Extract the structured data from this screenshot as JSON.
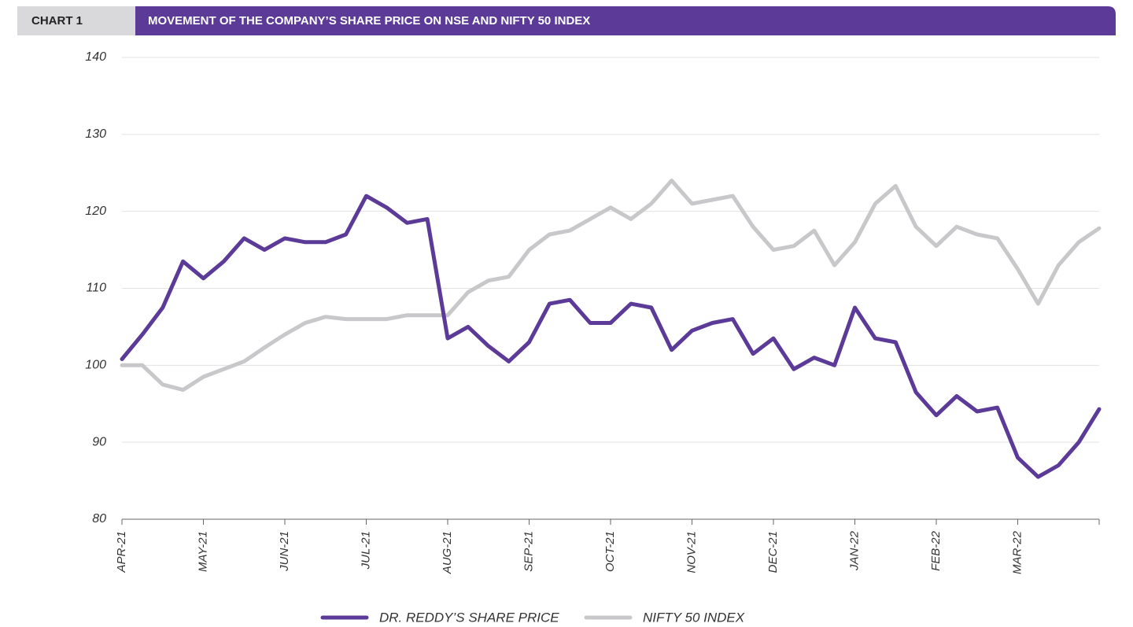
{
  "chart_data": {
    "type": "line",
    "chart_label": "CHART 1",
    "title": "MOVEMENT OF THE COMPANY’S SHARE PRICE ON NSE AND NIFTY 50 INDEX",
    "categories": [
      "APR-21",
      null,
      null,
      null,
      "MAY-21",
      null,
      null,
      null,
      "JUN-21",
      null,
      null,
      null,
      "JUL-21",
      null,
      null,
      null,
      "AUG-21",
      null,
      null,
      null,
      "SEP-21",
      null,
      null,
      null,
      "OCT-21",
      null,
      null,
      null,
      "NOV-21",
      null,
      null,
      null,
      "DEC-21",
      null,
      null,
      null,
      "JAN-22",
      null,
      null,
      null,
      "FEB-22",
      null,
      null,
      null,
      "MAR-22",
      null,
      null,
      null,
      null
    ],
    "series": [
      {
        "name": "DR. REDDY’S SHARE PRICE",
        "color": "#5b3b97",
        "values": [
          100.8,
          104,
          107.5,
          113.5,
          111.3,
          113.5,
          116.5,
          115,
          116.5,
          116,
          116,
          117,
          122,
          120.5,
          118.5,
          119,
          103.5,
          105,
          102.5,
          100.5,
          103,
          108,
          108.5,
          105.5,
          105.5,
          108,
          107.5,
          102,
          104.5,
          105.5,
          106,
          101.5,
          103.5,
          99.5,
          101,
          100,
          107.5,
          103.5,
          103,
          96.5,
          93.5,
          96,
          94,
          94.5,
          88,
          85.5,
          87,
          90,
          94.3
        ]
      },
      {
        "name": "NIFTY 50 INDEX",
        "color": "#c8c8cb",
        "values": [
          100,
          100,
          97.5,
          96.8,
          98.5,
          99.5,
          100.5,
          102.3,
          104,
          105.5,
          106.3,
          106,
          106,
          106,
          106.5,
          106.5,
          106.5,
          109.5,
          111,
          111.5,
          115,
          117,
          117.5,
          119,
          120.5,
          119,
          121,
          124,
          121,
          121.5,
          122,
          118,
          115,
          115.5,
          117.5,
          113,
          116,
          121,
          123.3,
          118,
          115.5,
          118,
          117,
          116.5,
          112.5,
          108,
          113,
          116,
          117.8
        ]
      }
    ],
    "ylim": [
      80,
      140
    ],
    "yticks": [
      80,
      90,
      100,
      110,
      120,
      130,
      140
    ],
    "grid": true
  }
}
